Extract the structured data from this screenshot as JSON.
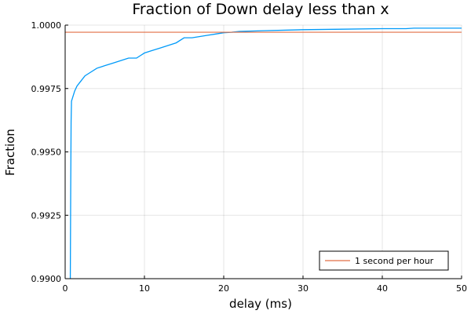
{
  "chart_data": {
    "type": "line",
    "title": "Fraction of Down delay less than x",
    "xlabel": "delay (ms)",
    "ylabel": "Fraction",
    "xlim": [
      0,
      50
    ],
    "ylim": [
      0.99,
      1.0
    ],
    "xticks": [
      0,
      10,
      20,
      30,
      40,
      50
    ],
    "xtick_labels": [
      "0",
      "10",
      "20",
      "30",
      "40",
      "50"
    ],
    "yticks": [
      0.99,
      0.9925,
      0.995,
      0.9975,
      1.0
    ],
    "ytick_labels": [
      "0.9900",
      "0.9925",
      "0.9950",
      "0.9975",
      "1.0000"
    ],
    "grid": true,
    "legend_position": "bottom-right",
    "series": [
      {
        "color": "#009af9",
        "x": [
          0.65,
          0.7,
          0.75,
          0.8,
          0.9,
          1.0,
          1.2,
          1.5,
          2.0,
          2.5,
          3.0,
          4.0,
          5.0,
          6.0,
          7.0,
          8.0,
          9.0,
          9.5,
          10.0,
          11.0,
          12.0,
          13.0,
          14.0,
          15.0,
          16.0,
          17.0,
          18.0,
          19.0,
          20.0,
          21.0,
          22.0,
          25.0,
          30.0,
          35.0,
          40.0,
          43.0,
          44.0,
          50.0
        ],
        "y": [
          0.99,
          0.9935,
          0.9962,
          0.997,
          0.9971,
          0.9972,
          0.9974,
          0.9976,
          0.9978,
          0.998,
          0.9981,
          0.9983,
          0.9984,
          0.9985,
          0.9986,
          0.9987,
          0.9987,
          0.9988,
          0.9989,
          0.999,
          0.9991,
          0.9992,
          0.9993,
          0.9995,
          0.9995,
          0.99955,
          0.9996,
          0.99965,
          0.9997,
          0.99972,
          0.99975,
          0.99978,
          0.99982,
          0.99984,
          0.99986,
          0.99986,
          0.99988,
          0.99988
        ]
      },
      {
        "name": "1 second per hour",
        "color": "#e26f46",
        "x": [
          0,
          50
        ],
        "y": [
          0.99972,
          0.99972
        ]
      }
    ]
  }
}
